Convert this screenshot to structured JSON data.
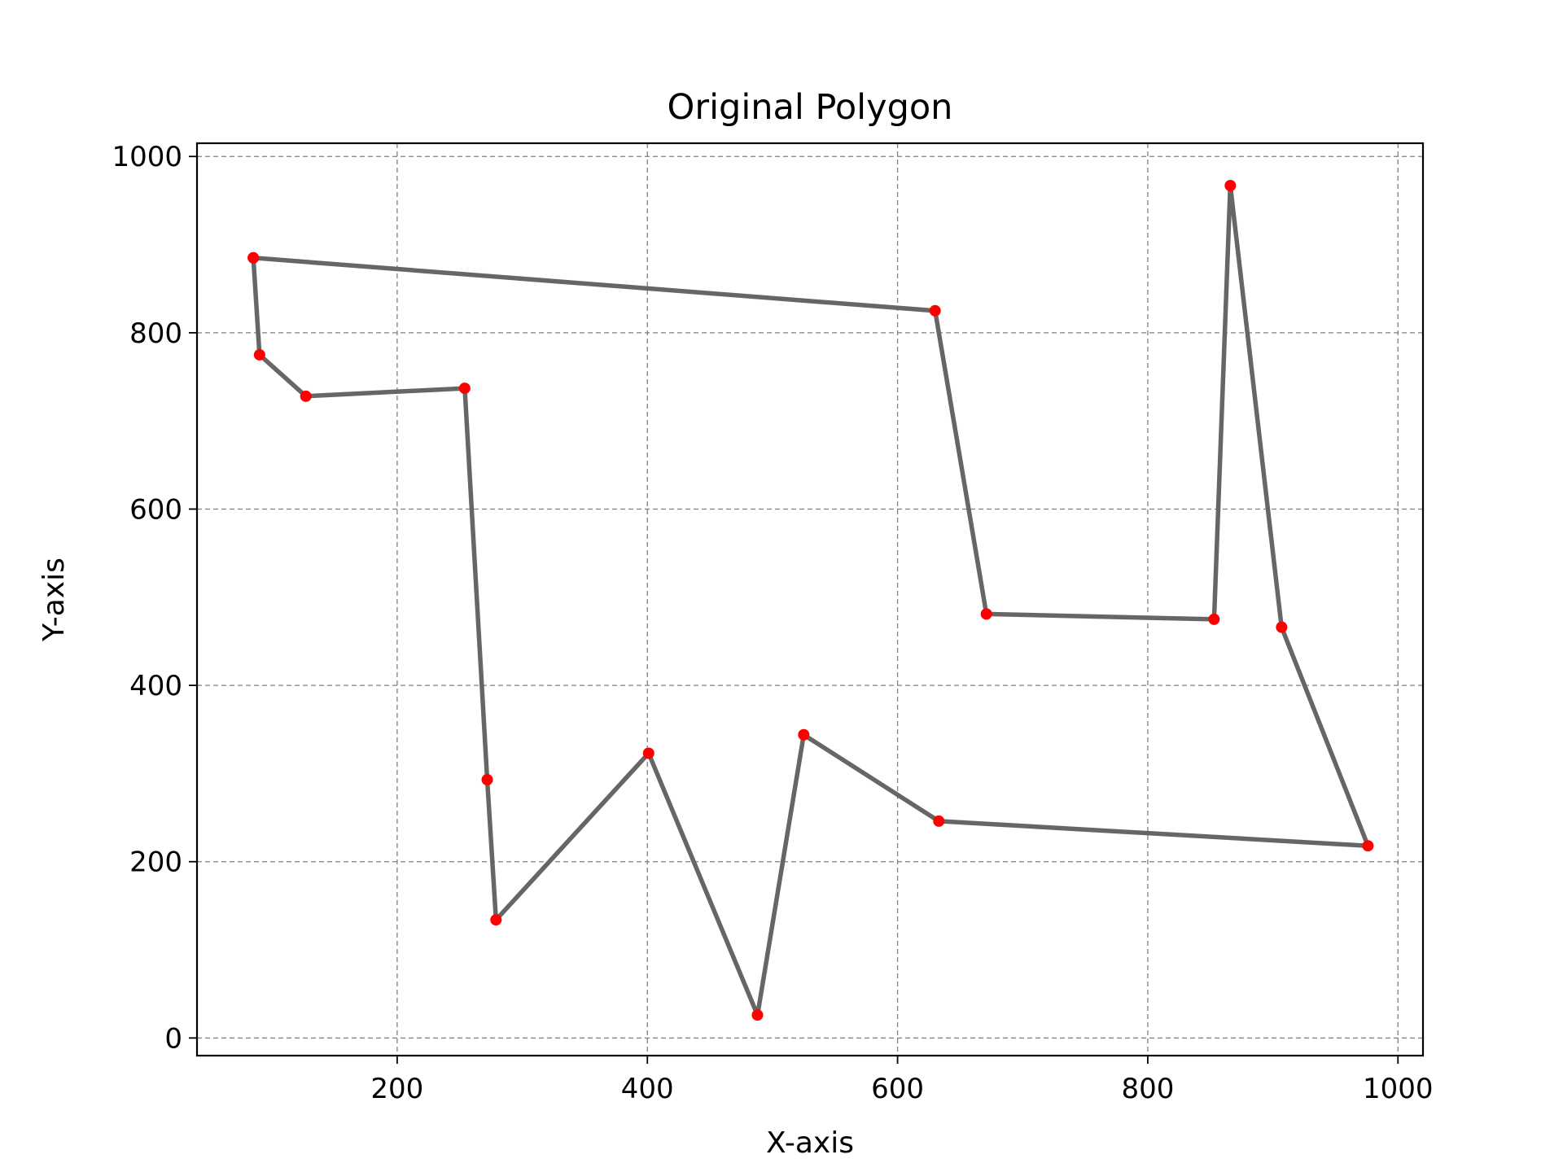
{
  "chart_data": {
    "type": "line",
    "title": "Original Polygon",
    "xlabel": "X-axis",
    "ylabel": "Y-axis",
    "xlim": [
      40,
      1020
    ],
    "ylim": [
      -20,
      1015
    ],
    "xticks": [
      200,
      400,
      600,
      800,
      1000
    ],
    "yticks": [
      0,
      200,
      400,
      600,
      800,
      1000
    ],
    "grid": true,
    "line_color": "#666666",
    "marker_color": "#ff0000",
    "closed": false,
    "points": [
      {
        "x": 85,
        "y": 885
      },
      {
        "x": 90,
        "y": 775
      },
      {
        "x": 127,
        "y": 728
      },
      {
        "x": 254,
        "y": 737
      },
      {
        "x": 272,
        "y": 293
      },
      {
        "x": 279,
        "y": 134
      },
      {
        "x": 401,
        "y": 323
      },
      {
        "x": 488,
        "y": 26
      },
      {
        "x": 525,
        "y": 344
      },
      {
        "x": 633,
        "y": 246
      },
      {
        "x": 976,
        "y": 218
      },
      {
        "x": 907,
        "y": 466
      },
      {
        "x": 866,
        "y": 967
      },
      {
        "x": 853,
        "y": 475
      },
      {
        "x": 671,
        "y": 481
      },
      {
        "x": 630,
        "y": 825
      },
      {
        "x": 85,
        "y": 885
      }
    ]
  }
}
